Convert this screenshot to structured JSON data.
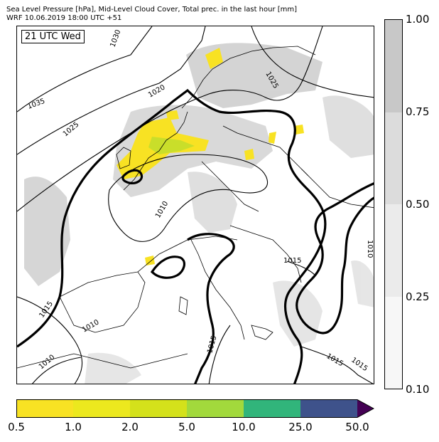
{
  "header": {
    "line1": "Sea Level Pressure [hPa], Mid-Level Cloud Cover, Total prec. in the last hour [mm]",
    "line2": "WRF 10.06.2019 18:00 UTC +51"
  },
  "map": {
    "time_label": "21 UTC Wed",
    "isobar_labels": [
      "1030",
      "1035",
      "1025",
      "1020",
      "1025",
      "1010",
      "1015",
      "1010",
      "1010",
      "1015",
      "1015",
      "1015",
      "1010",
      "1015"
    ]
  },
  "cloud_cover_bar": {
    "tick_labels": [
      "1.00",
      "0.75",
      "0.50",
      "0.25",
      "0.10"
    ],
    "colors": [
      "#c8c8c8",
      "#dcdcdc",
      "#ebebeb",
      "#f7f7f7"
    ]
  },
  "precip_bar": {
    "tick_labels": [
      "0.5",
      "1.0",
      "2.0",
      "5.0",
      "10.0",
      "25.0",
      "50.0"
    ],
    "colors": [
      "#f8e223",
      "#ece81e",
      "#d4e11b",
      "#a2d93c",
      "#31b57b",
      "#3e528b",
      "#440154"
    ]
  }
}
